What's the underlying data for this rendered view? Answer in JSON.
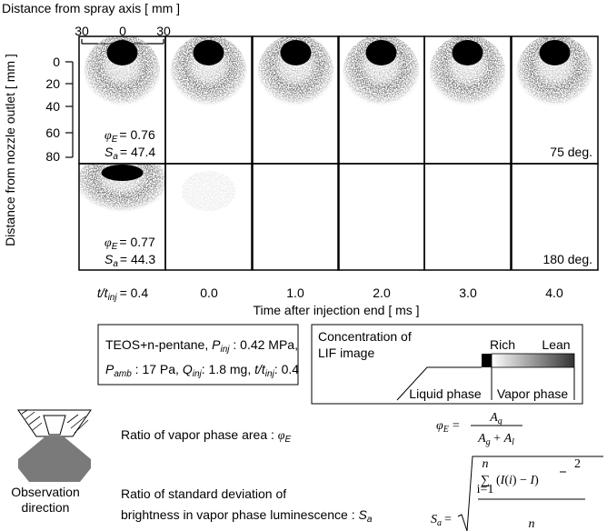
{
  "axes": {
    "x_label": "Distance from spray axis [ mm ]",
    "x_ticks": [
      "30",
      "0",
      "30"
    ],
    "y_label": "Distance from nozzle outlet [ mm ]",
    "y_ticks": [
      "0",
      "20",
      "40",
      "60",
      "80"
    ]
  },
  "panels": {
    "rows": [
      {
        "phi": [
          "φ",
          "E",
          "= 0.76"
        ],
        "sa": [
          "S",
          "a",
          "= 47.4"
        ],
        "angle": "75 deg."
      },
      {
        "phi": [
          "φ",
          "E",
          "= 0.77"
        ],
        "sa": [
          "S",
          "a",
          "= 44.3"
        ],
        "angle": "180 deg."
      }
    ]
  },
  "time_axis": {
    "first": [
      "t/t",
      "inj",
      "= 0.4"
    ],
    "labels": [
      "0.0",
      "1.0",
      "2.0",
      "3.0",
      "4.0"
    ],
    "title": "Time after injection end [ ms ]"
  },
  "conditions": {
    "line1": [
      "TEOS+n-pentane, ",
      "P",
      "inj",
      " : 0.42 MPa,"
    ],
    "line2": [
      "P",
      "amb",
      " : 17 Pa, ",
      "Q",
      "inj",
      ": 1.8 mg, ",
      "t/t",
      "inj",
      ": 0.4"
    ]
  },
  "legend": {
    "title": [
      "Concentration of",
      "LIF image"
    ],
    "rich": "Rich",
    "lean": "Lean",
    "liquid": "Liquid phase",
    "vapor": "Vapor phase"
  },
  "definitions": {
    "observation": [
      "Observation",
      "direction"
    ],
    "phi_text": [
      "Ratio of vapor phase area : ",
      "φ",
      "E"
    ],
    "phi_formula": {
      "lhs": [
        "φ",
        "E",
        "="
      ],
      "num": [
        "A",
        "g"
      ],
      "den": [
        "A",
        "g",
        " + ",
        "A",
        "l"
      ]
    },
    "sa_text": [
      "Ratio of standard deviation of",
      "brightness in vapor phase luminescence : ",
      "S",
      "a"
    ],
    "sa_formula": {
      "lhs": [
        "S",
        "a",
        "="
      ],
      "sum_top": "n",
      "sum_bottom": "i=1",
      "sum": "∑",
      "body": [
        "(",
        "I",
        "(",
        "i",
        ") − ",
        "I",
        ")"
      ],
      "power": "2",
      "den": "n"
    }
  }
}
